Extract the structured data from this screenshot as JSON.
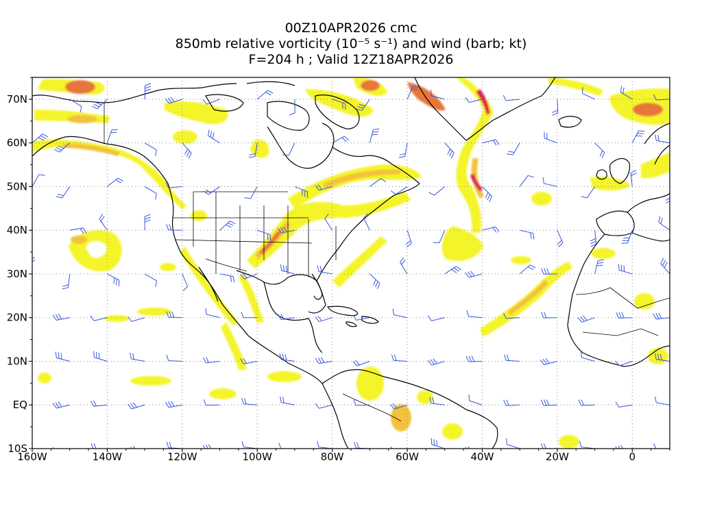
{
  "header": {
    "line1": "00Z10APR2026 cmc",
    "line2": "850mb relative vorticity (10⁻⁵ s⁻¹) and wind (barb; kt)",
    "line3": "F=204 h ; Valid 12Z18APR2026"
  },
  "axes": {
    "lon_labels": [
      "160W",
      "140W",
      "120W",
      "100W",
      "80W",
      "60W",
      "40W",
      "20W",
      "0"
    ],
    "lon_values": [
      -160,
      -140,
      -120,
      -100,
      -80,
      -60,
      -40,
      -20,
      0
    ],
    "lat_labels": [
      "70N",
      "60N",
      "50N",
      "40N",
      "30N",
      "20N",
      "10N",
      "EQ",
      "10S"
    ],
    "lat_values": [
      70,
      60,
      50,
      40,
      30,
      20,
      10,
      0,
      -10
    ],
    "lon_range": [
      -160,
      10
    ],
    "lat_range": [
      -10,
      75
    ],
    "grid": "dotted"
  },
  "colors": {
    "shade_low": "#f4f42a",
    "shade_mid": "#f2c23a",
    "shade_high": "#e8763a",
    "shade_peak": "#e0204a",
    "barb": "#3355dd",
    "coast": "#000000",
    "grid": "#888888"
  },
  "icons": {
    "wind": "wind-barb-icon"
  }
}
